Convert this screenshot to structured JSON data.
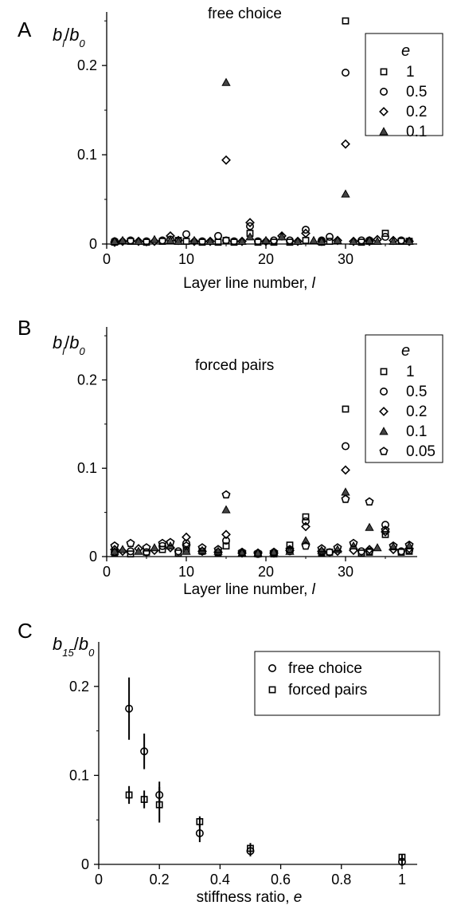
{
  "chart_data": [
    {
      "panel_letter": "A",
      "type": "scatter",
      "title": "free choice",
      "xlabel": "Layer line number, ",
      "xlabel_var": "l",
      "ylabel": {
        "num": "b",
        "num_sub": "l",
        "den": "b",
        "den_sub": "0"
      },
      "xlim": [
        0,
        39
      ],
      "ylim": [
        0,
        0.26
      ],
      "xticks": [
        0,
        10,
        20,
        30
      ],
      "yticks": [
        0,
        0.1,
        0.2
      ],
      "ytick_labels": [
        "0",
        "0.1",
        "0.2"
      ],
      "legend_title": "e",
      "legend_position": "top-right",
      "series": [
        {
          "name": "1",
          "marker": "square",
          "points": [
            [
              1,
              0.002
            ],
            [
              3,
              0.003
            ],
            [
              5,
              0.002
            ],
            [
              7,
              0.003
            ],
            [
              9,
              0.004
            ],
            [
              10,
              0.003
            ],
            [
              12,
              0.002
            ],
            [
              14,
              0.002
            ],
            [
              15,
              0.004
            ],
            [
              16,
              0.002
            ],
            [
              18,
              0.012
            ],
            [
              19,
              0.002
            ],
            [
              21,
              0.002
            ],
            [
              23,
              0.002
            ],
            [
              25,
              0.004
            ],
            [
              27,
              0.002
            ],
            [
              28,
              0.003
            ],
            [
              30,
              0.25
            ],
            [
              32,
              0.002
            ],
            [
              33,
              0.003
            ],
            [
              35,
              0.012
            ],
            [
              37,
              0.003
            ],
            [
              38,
              0.003
            ]
          ]
        },
        {
          "name": "0.5",
          "marker": "circle",
          "points": [
            [
              1,
              0.003
            ],
            [
              3,
              0.004
            ],
            [
              5,
              0.003
            ],
            [
              7,
              0.004
            ],
            [
              8,
              0.005
            ],
            [
              10,
              0.011
            ],
            [
              12,
              0.003
            ],
            [
              14,
              0.009
            ],
            [
              15,
              0.004
            ],
            [
              16,
              0.003
            ],
            [
              18,
              0.02
            ],
            [
              19,
              0.003
            ],
            [
              21,
              0.004
            ],
            [
              23,
              0.004
            ],
            [
              25,
              0.016
            ],
            [
              27,
              0.004
            ],
            [
              28,
              0.008
            ],
            [
              30,
              0.192
            ],
            [
              32,
              0.004
            ],
            [
              33,
              0.004
            ],
            [
              35,
              0.008
            ],
            [
              37,
              0.004
            ],
            [
              38,
              0.003
            ]
          ]
        },
        {
          "name": "0.2",
          "marker": "diamond",
          "points": [
            [
              1,
              0.002
            ],
            [
              2,
              0.003
            ],
            [
              4,
              0.003
            ],
            [
              6,
              0.003
            ],
            [
              8,
              0.009
            ],
            [
              9,
              0.004
            ],
            [
              11,
              0.003
            ],
            [
              13,
              0.003
            ],
            [
              15,
              0.094
            ],
            [
              17,
              0.003
            ],
            [
              18,
              0.024
            ],
            [
              20,
              0.003
            ],
            [
              22,
              0.009
            ],
            [
              24,
              0.003
            ],
            [
              25,
              0.012
            ],
            [
              27,
              0.003
            ],
            [
              29,
              0.004
            ],
            [
              30,
              0.112
            ],
            [
              31,
              0.003
            ],
            [
              33,
              0.003
            ],
            [
              34,
              0.005
            ],
            [
              36,
              0.004
            ],
            [
              38,
              0.003
            ]
          ]
        },
        {
          "name": "0.1",
          "marker": "triangle",
          "points": [
            [
              1,
              0.003
            ],
            [
              2,
              0.004
            ],
            [
              4,
              0.003
            ],
            [
              6,
              0.005
            ],
            [
              8,
              0.004
            ],
            [
              9,
              0.003
            ],
            [
              11,
              0.004
            ],
            [
              13,
              0.003
            ],
            [
              15,
              0.181
            ],
            [
              17,
              0.003
            ],
            [
              18,
              0.008
            ],
            [
              20,
              0.004
            ],
            [
              22,
              0.008
            ],
            [
              24,
              0.003
            ],
            [
              26,
              0.004
            ],
            [
              27,
              0.003
            ],
            [
              29,
              0.004
            ],
            [
              30,
              0.056
            ],
            [
              31,
              0.003
            ],
            [
              33,
              0.004
            ],
            [
              34,
              0.003
            ],
            [
              36,
              0.003
            ],
            [
              38,
              0.003
            ]
          ]
        }
      ]
    },
    {
      "panel_letter": "B",
      "type": "scatter",
      "title": "forced pairs",
      "xlabel": "Layer line number, ",
      "xlabel_var": "l",
      "ylabel": {
        "num": "b",
        "num_sub": "l",
        "den": "b",
        "den_sub": "0"
      },
      "xlim": [
        0,
        39
      ],
      "ylim": [
        0,
        0.26
      ],
      "xticks": [
        0,
        10,
        20,
        30
      ],
      "yticks": [
        0,
        0.1,
        0.2
      ],
      "ytick_labels": [
        "0",
        "0.1",
        "0.2"
      ],
      "legend_title": "e",
      "legend_position": "top-right",
      "series": [
        {
          "name": "1",
          "marker": "square",
          "points": [
            [
              1,
              0.004
            ],
            [
              3,
              0.003
            ],
            [
              5,
              0.005
            ],
            [
              7,
              0.008
            ],
            [
              9,
              0.004
            ],
            [
              10,
              0.007
            ],
            [
              12,
              0.006
            ],
            [
              14,
              0.004
            ],
            [
              15,
              0.012
            ],
            [
              17,
              0.004
            ],
            [
              19,
              0.003
            ],
            [
              21,
              0.003
            ],
            [
              23,
              0.013
            ],
            [
              25,
              0.045
            ],
            [
              27,
              0.004
            ],
            [
              28,
              0.005
            ],
            [
              30,
              0.167
            ],
            [
              32,
              0.004
            ],
            [
              33,
              0.005
            ],
            [
              35,
              0.025
            ],
            [
              37,
              0.005
            ],
            [
              38,
              0.006
            ]
          ]
        },
        {
          "name": "0.5",
          "marker": "circle",
          "points": [
            [
              1,
              0.005
            ],
            [
              3,
              0.006
            ],
            [
              5,
              0.005
            ],
            [
              7,
              0.012
            ],
            [
              9,
              0.006
            ],
            [
              10,
              0.015
            ],
            [
              12,
              0.006
            ],
            [
              14,
              0.005
            ],
            [
              15,
              0.018
            ],
            [
              17,
              0.004
            ],
            [
              19,
              0.003
            ],
            [
              21,
              0.004
            ],
            [
              23,
              0.006
            ],
            [
              25,
              0.04
            ],
            [
              27,
              0.005
            ],
            [
              28,
              0.005
            ],
            [
              30,
              0.125
            ],
            [
              32,
              0.006
            ],
            [
              33,
              0.006
            ],
            [
              35,
              0.036
            ],
            [
              37,
              0.006
            ],
            [
              38,
              0.007
            ]
          ]
        },
        {
          "name": "0.2",
          "marker": "diamond",
          "points": [
            [
              1,
              0.008
            ],
            [
              2,
              0.006
            ],
            [
              4,
              0.009
            ],
            [
              6,
              0.007
            ],
            [
              8,
              0.01
            ],
            [
              10,
              0.022
            ],
            [
              12,
              0.006
            ],
            [
              14,
              0.005
            ],
            [
              15,
              0.025
            ],
            [
              17,
              0.004
            ],
            [
              19,
              0.004
            ],
            [
              21,
              0.004
            ],
            [
              23,
              0.007
            ],
            [
              25,
              0.034
            ],
            [
              27,
              0.006
            ],
            [
              29,
              0.006
            ],
            [
              30,
              0.098
            ],
            [
              31,
              0.007
            ],
            [
              33,
              0.008
            ],
            [
              35,
              0.028
            ],
            [
              36,
              0.008
            ],
            [
              38,
              0.009
            ]
          ]
        },
        {
          "name": "0.1",
          "marker": "triangle",
          "points": [
            [
              1,
              0.006
            ],
            [
              2,
              0.008
            ],
            [
              4,
              0.006
            ],
            [
              6,
              0.01
            ],
            [
              8,
              0.012
            ],
            [
              10,
              0.006
            ],
            [
              12,
              0.007
            ],
            [
              14,
              0.006
            ],
            [
              15,
              0.053
            ],
            [
              17,
              0.004
            ],
            [
              19,
              0.004
            ],
            [
              21,
              0.005
            ],
            [
              23,
              0.006
            ],
            [
              25,
              0.018
            ],
            [
              27,
              0.007
            ],
            [
              29,
              0.008
            ],
            [
              30,
              0.073
            ],
            [
              31,
              0.012
            ],
            [
              33,
              0.033
            ],
            [
              34,
              0.01
            ],
            [
              36,
              0.011
            ],
            [
              38,
              0.012
            ]
          ]
        },
        {
          "name": "0.05",
          "marker": "pentagon",
          "points": [
            [
              1,
              0.012
            ],
            [
              3,
              0.015
            ],
            [
              5,
              0.01
            ],
            [
              7,
              0.015
            ],
            [
              8,
              0.016
            ],
            [
              10,
              0.012
            ],
            [
              12,
              0.01
            ],
            [
              14,
              0.008
            ],
            [
              15,
              0.07
            ],
            [
              17,
              0.005
            ],
            [
              19,
              0.004
            ],
            [
              21,
              0.005
            ],
            [
              23,
              0.008
            ],
            [
              25,
              0.012
            ],
            [
              27,
              0.009
            ],
            [
              29,
              0.01
            ],
            [
              30,
              0.065
            ],
            [
              31,
              0.015
            ],
            [
              33,
              0.062
            ],
            [
              35,
              0.03
            ],
            [
              36,
              0.012
            ],
            [
              38,
              0.013
            ]
          ]
        }
      ]
    },
    {
      "panel_letter": "C",
      "type": "scatter",
      "title": "",
      "xlabel": "stiffness ratio, ",
      "xlabel_var": "e",
      "ylabel": {
        "num": "b",
        "num_sub": "15",
        "den": "b",
        "den_sub": "0"
      },
      "xlim": [
        0,
        1.05
      ],
      "ylim": [
        0,
        0.25
      ],
      "xticks": [
        0,
        0.2,
        0.4,
        0.6,
        0.8,
        1
      ],
      "xtick_labels": [
        "0",
        "0.2",
        "0.4",
        "0.6",
        "0.8",
        "1"
      ],
      "yticks": [
        0,
        0.1,
        0.2
      ],
      "ytick_labels": [
        "0",
        "0.1",
        "0.2"
      ],
      "legend_position": "top-right",
      "series": [
        {
          "name": "free choice",
          "marker": "circle",
          "points": [
            [
              0.1,
              0.175
            ],
            [
              0.15,
              0.127
            ],
            [
              0.2,
              0.078
            ],
            [
              0.333,
              0.035
            ],
            [
              0.5,
              0.015
            ],
            [
              1,
              0.003
            ]
          ],
          "errors": [
            0.035,
            0.02,
            0.015,
            0.01,
            0.006,
            0.003
          ]
        },
        {
          "name": "forced pairs",
          "marker": "square",
          "points": [
            [
              0.1,
              0.078
            ],
            [
              0.15,
              0.073
            ],
            [
              0.2,
              0.067
            ],
            [
              0.333,
              0.048
            ],
            [
              0.5,
              0.018
            ],
            [
              1,
              0.008
            ]
          ],
          "errors": [
            0.01,
            0.01,
            0.02,
            0.006,
            0.006,
            0.003
          ]
        }
      ]
    }
  ]
}
